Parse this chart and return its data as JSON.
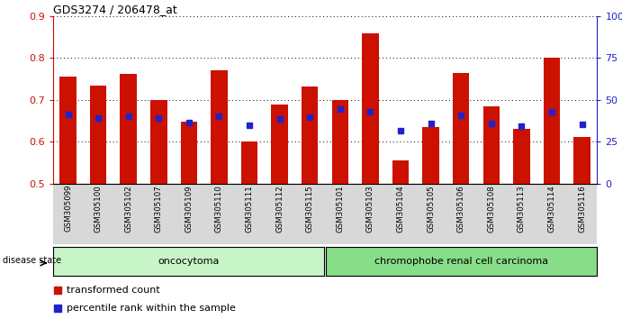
{
  "title": "GDS3274 / 206478_at",
  "samples": [
    "GSM305099",
    "GSM305100",
    "GSM305102",
    "GSM305107",
    "GSM305109",
    "GSM305110",
    "GSM305111",
    "GSM305112",
    "GSM305115",
    "GSM305101",
    "GSM305103",
    "GSM305104",
    "GSM305105",
    "GSM305106",
    "GSM305108",
    "GSM305113",
    "GSM305114",
    "GSM305116"
  ],
  "red_values": [
    0.755,
    0.733,
    0.762,
    0.7,
    0.648,
    0.77,
    0.6,
    0.688,
    0.732,
    0.7,
    0.858,
    0.555,
    0.635,
    0.763,
    0.685,
    0.63,
    0.8,
    0.612
  ],
  "blue_values": [
    0.664,
    0.657,
    0.66,
    0.657,
    0.645,
    0.66,
    0.638,
    0.655,
    0.658,
    0.678,
    0.672,
    0.626,
    0.643,
    0.662,
    0.643,
    0.636,
    0.672,
    0.641
  ],
  "ylim_left": [
    0.5,
    0.9
  ],
  "ylim_right": [
    0,
    100
  ],
  "yticks_left": [
    0.5,
    0.6,
    0.7,
    0.8,
    0.9
  ],
  "yticks_right": [
    0,
    25,
    50,
    75,
    100
  ],
  "ytick_labels_right": [
    "0",
    "25",
    "50",
    "75",
    "100%"
  ],
  "oncocytoma_count": 9,
  "group_labels": [
    "oncocytoma",
    "chromophobe renal cell carcinoma"
  ],
  "bar_color_red": "#cc1100",
  "bar_color_blue": "#2222cc",
  "bar_width": 0.55,
  "legend_red": "transformed count",
  "legend_blue": "percentile rank within the sample"
}
